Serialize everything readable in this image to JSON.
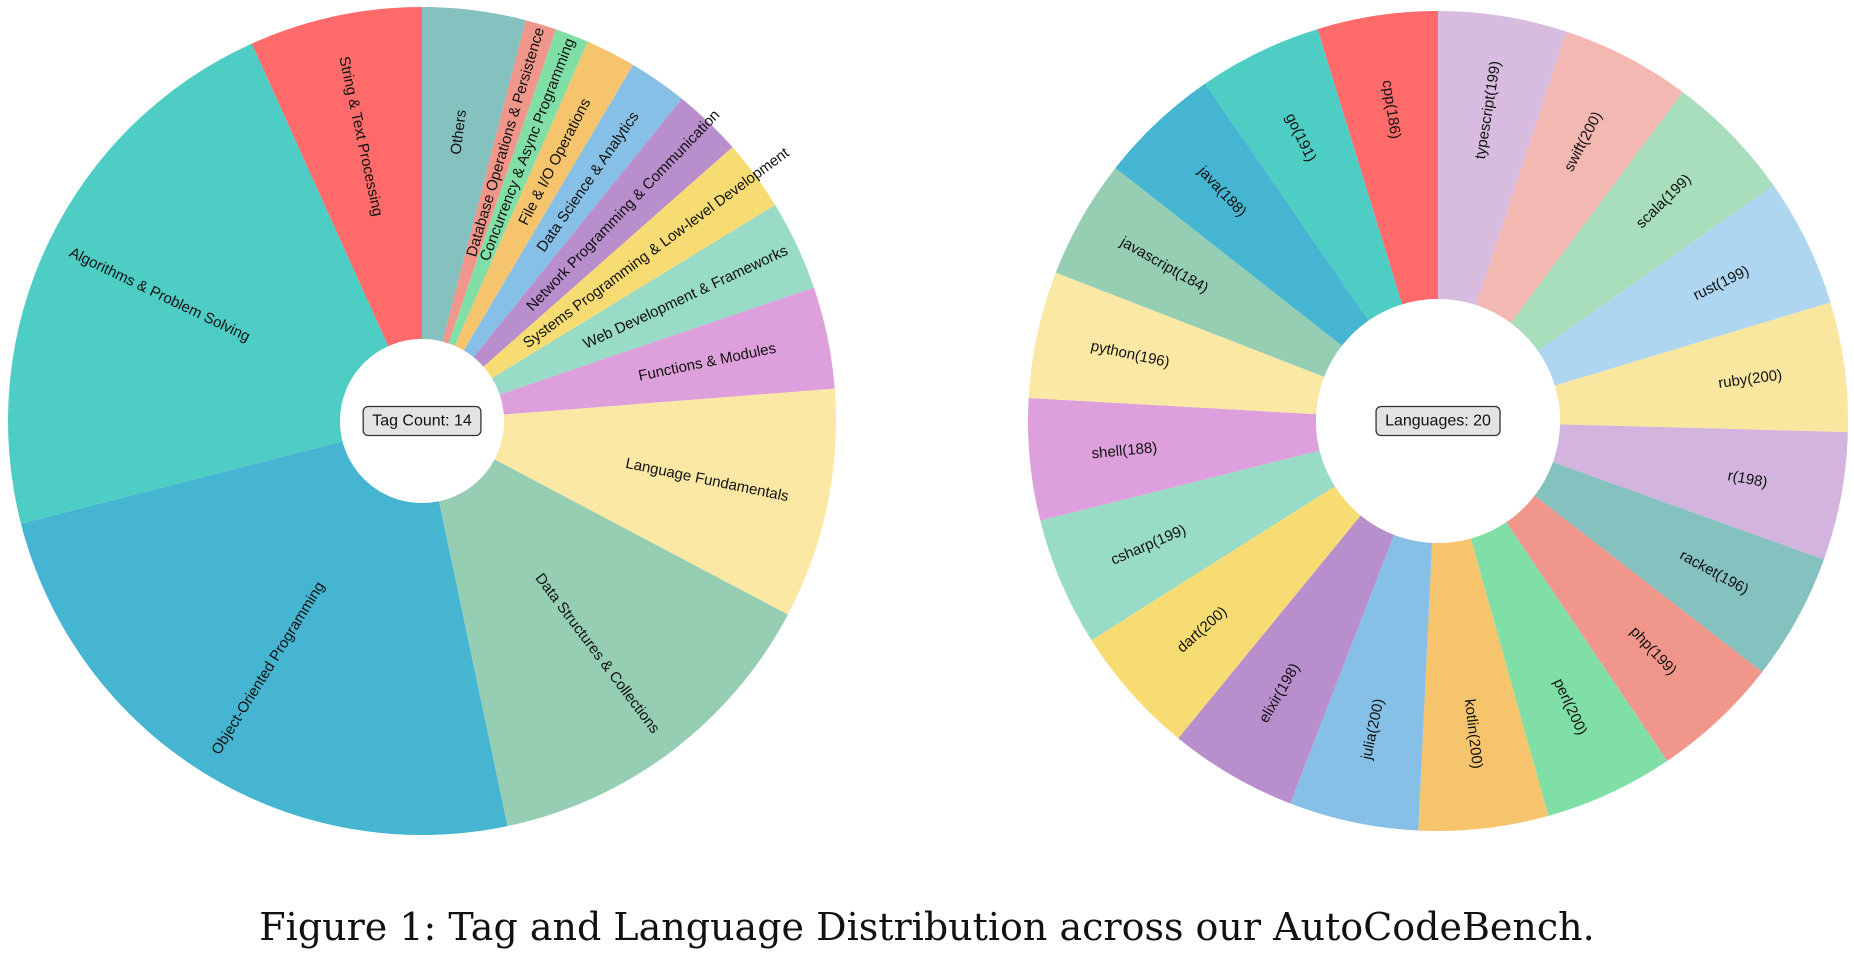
{
  "figure": {
    "caption": "Figure 1: Tag and Language Distribution across our AutoCodeBench."
  },
  "chart_data": [
    {
      "type": "pie",
      "variant": "donut",
      "center_label": "Tag Count: 14",
      "start_angle_deg_clockwise_from_top": 0,
      "slices": [
        {
          "label": "Others",
          "value": 3.5,
          "color": "#85C1BE"
        },
        {
          "label": "Database Operations & Persistence",
          "value": 1.05,
          "color": "#F1968A"
        },
        {
          "label": "Concurrency & Async Programming",
          "value": 1.14,
          "color": "#80DFA6"
        },
        {
          "label": "File & I/O Operations",
          "value": 1.7,
          "color": "#F7C46E"
        },
        {
          "label": "Data Science & Analytics",
          "value": 1.98,
          "color": "#87C0E6"
        },
        {
          "label": "Network Programming & Communication",
          "value": 2.34,
          "color": "#B98ECD"
        },
        {
          "label": "Systems Programming & Low-level Development",
          "value": 2.4,
          "color": "#F6DC72"
        },
        {
          "label": "Web Development & Frameworks",
          "value": 3.05,
          "color": "#98DBC7"
        },
        {
          "label": "Functions & Modules",
          "value": 3.45,
          "color": "#DEA0DC"
        },
        {
          "label": "Language Fundamentals",
          "value": 7.8,
          "color": "#FBE8A5"
        },
        {
          "label": "Data Structures & Collections",
          "value": 12.1,
          "color": "#96CEB3"
        },
        {
          "label": "Object-Oriented Programming",
          "value": 21.1,
          "color": "#45B5D2"
        },
        {
          "label": "Algorithms & Problem Solving",
          "value": 19.3,
          "color": "#4ECDC4"
        },
        {
          "label": "String & Text Processing",
          "value": 5.85,
          "color": "#FF6B6B"
        }
      ]
    },
    {
      "type": "pie",
      "variant": "donut",
      "center_label": "Languages: 20",
      "start_angle_deg_clockwise_from_top": 0,
      "slices": [
        {
          "label": "typescript(199)",
          "value": 199,
          "color": "#D7BCE0"
        },
        {
          "label": "swift(200)",
          "value": 200,
          "color": "#F4B8B2"
        },
        {
          "label": "scala(199)",
          "value": 199,
          "color": "#A8DEBC"
        },
        {
          "label": "rust(199)",
          "value": 199,
          "color": "#AED6F1"
        },
        {
          "label": "ruby(200)",
          "value": 200,
          "color": "#F9E79F"
        },
        {
          "label": "r(198)",
          "value": 198,
          "color": "#D2B4DE"
        },
        {
          "label": "racket(196)",
          "value": 196,
          "color": "#85C1BE"
        },
        {
          "label": "php(199)",
          "value": 199,
          "color": "#F1968A"
        },
        {
          "label": "perl(200)",
          "value": 200,
          "color": "#80DFA6"
        },
        {
          "label": "kotlin(200)",
          "value": 200,
          "color": "#F7C46E"
        },
        {
          "label": "julia(200)",
          "value": 200,
          "color": "#87C0E6"
        },
        {
          "label": "elixir(198)",
          "value": 198,
          "color": "#B98ECD"
        },
        {
          "label": "dart(200)",
          "value": 200,
          "color": "#F6DC72"
        },
        {
          "label": "csharp(199)",
          "value": 199,
          "color": "#98DBC7"
        },
        {
          "label": "shell(188)",
          "value": 188,
          "color": "#DEA0DC"
        },
        {
          "label": "python(196)",
          "value": 196,
          "color": "#FBE8A5"
        },
        {
          "label": "javascript(184)",
          "value": 184,
          "color": "#96CEB3"
        },
        {
          "label": "java(188)",
          "value": 188,
          "color": "#45B5D2"
        },
        {
          "label": "go(191)",
          "value": 191,
          "color": "#4ECDC4"
        },
        {
          "label": "cpp(186)",
          "value": 186,
          "color": "#FF6B6B"
        }
      ]
    }
  ]
}
